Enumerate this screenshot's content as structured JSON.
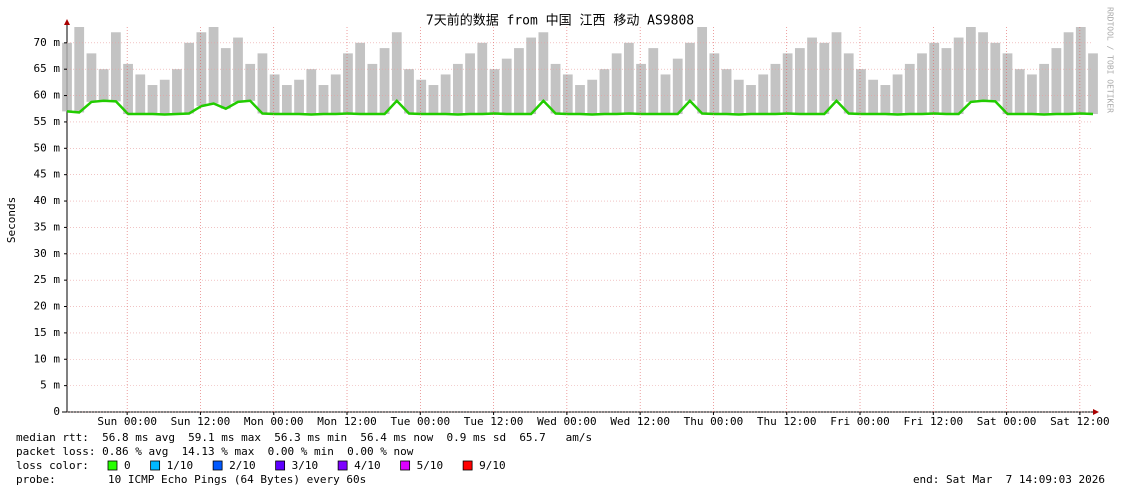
{
  "chart_data": {
    "type": "smokeline",
    "title": "7天前的数据 from 中国 江西 移动 AS9808",
    "y_label": "Seconds",
    "watermark": "RRDTOOL / TOBI OETIKER",
    "xlim": [
      0,
      168
    ],
    "xticks": [
      {
        "value": 9.85,
        "label": "Sun 00:00"
      },
      {
        "value": 21.85,
        "label": "Sun 12:00"
      },
      {
        "value": 33.85,
        "label": "Mon 00:00"
      },
      {
        "value": 45.85,
        "label": "Mon 12:00"
      },
      {
        "value": 57.85,
        "label": "Tue 00:00"
      },
      {
        "value": 69.85,
        "label": "Tue 12:00"
      },
      {
        "value": 81.85,
        "label": "Wed 00:00"
      },
      {
        "value": 93.85,
        "label": "Wed 12:00"
      },
      {
        "value": 105.85,
        "label": "Thu 00:00"
      },
      {
        "value": 117.85,
        "label": "Thu 12:00"
      },
      {
        "value": 129.85,
        "label": "Fri 00:00"
      },
      {
        "value": 141.85,
        "label": "Fri 12:00"
      },
      {
        "value": 153.85,
        "label": "Sat 00:00"
      },
      {
        "value": 165.85,
        "label": "Sat 12:00"
      }
    ],
    "ylim": [
      0,
      0.073
    ],
    "yticks": [
      0,
      {
        "value": 0.005,
        "label": "5 m"
      },
      {
        "value": 0.01,
        "label": "10 m"
      },
      {
        "value": 0.015,
        "label": "15 m"
      },
      {
        "value": 0.02,
        "label": "20 m"
      },
      {
        "value": 0.025,
        "label": "25 m"
      },
      {
        "value": 0.03,
        "label": "30 m"
      },
      {
        "value": 0.035,
        "label": "35 m"
      },
      {
        "value": 0.04,
        "label": "40 m"
      },
      {
        "value": 0.045,
        "label": "45 m"
      },
      {
        "value": 0.05,
        "label": "50 m"
      },
      {
        "value": 0.055,
        "label": "55 m"
      },
      {
        "value": 0.06,
        "label": "60 m"
      },
      {
        "value": 0.065,
        "label": "65 m"
      },
      {
        "value": 0.07,
        "label": "70 m"
      }
    ],
    "grid": true,
    "x": [
      0,
      2,
      4,
      6,
      8,
      10,
      12,
      14,
      16,
      18,
      20,
      22,
      24,
      26,
      28,
      30,
      32,
      34,
      36,
      38,
      40,
      42,
      44,
      46,
      48,
      50,
      52,
      54,
      56,
      58,
      60,
      62,
      64,
      66,
      68,
      70,
      72,
      74,
      76,
      78,
      80,
      82,
      84,
      86,
      88,
      90,
      92,
      94,
      96,
      98,
      100,
      102,
      104,
      106,
      108,
      110,
      112,
      114,
      116,
      118,
      120,
      122,
      124,
      126,
      128,
      130,
      132,
      134,
      136,
      138,
      140,
      142,
      144,
      146,
      148,
      150,
      152,
      154,
      156,
      158,
      160,
      162,
      164,
      166,
      168
    ],
    "series": [
      {
        "color": "#22cc00",
        "values": [
          0.057,
          0.0568,
          0.0588,
          0.059,
          0.0589,
          0.0565,
          0.0565,
          0.0565,
          0.0564,
          0.0565,
          0.0566,
          0.058,
          0.0585,
          0.0575,
          0.0588,
          0.059,
          0.0566,
          0.0565,
          0.0565,
          0.0565,
          0.0564,
          0.0565,
          0.0565,
          0.0566,
          0.0565,
          0.0565,
          0.0565,
          0.059,
          0.0566,
          0.0565,
          0.0565,
          0.0565,
          0.0564,
          0.0565,
          0.0565,
          0.0566,
          0.0565,
          0.0565,
          0.0565,
          0.059,
          0.0566,
          0.0565,
          0.0565,
          0.0564,
          0.0565,
          0.0565,
          0.0566,
          0.0565,
          0.0565,
          0.0565,
          0.0565,
          0.059,
          0.0566,
          0.0565,
          0.0565,
          0.0564,
          0.0565,
          0.0565,
          0.0565,
          0.0566,
          0.0565,
          0.0565,
          0.0565,
          0.059,
          0.0566,
          0.0565,
          0.0565,
          0.0565,
          0.0564,
          0.0565,
          0.0565,
          0.0566,
          0.0565,
          0.0565,
          0.0588,
          0.059,
          0.0589,
          0.0565,
          0.0565,
          0.0565,
          0.0564,
          0.0565,
          0.0565,
          0.0566,
          0.0565
        ]
      },
      {
        "color": "#b4b4b4",
        "values": [
          0.07,
          0.073,
          0.068,
          0.065,
          0.072,
          0.066,
          0.064,
          0.062,
          0.063,
          0.065,
          0.07,
          0.072,
          0.073,
          0.069,
          0.071,
          0.066,
          0.068,
          0.064,
          0.062,
          0.063,
          0.065,
          0.062,
          0.064,
          0.068,
          0.07,
          0.066,
          0.069,
          0.072,
          0.065,
          0.063,
          0.062,
          0.064,
          0.066,
          0.068,
          0.07,
          0.065,
          0.067,
          0.069,
          0.071,
          0.072,
          0.066,
          0.064,
          0.062,
          0.063,
          0.065,
          0.068,
          0.07,
          0.066,
          0.069,
          0.064,
          0.067,
          0.07,
          0.073,
          0.068,
          0.065,
          0.063,
          0.062,
          0.064,
          0.066,
          0.068,
          0.069,
          0.071,
          0.07,
          0.072,
          0.068,
          0.065,
          0.063,
          0.062,
          0.064,
          0.066,
          0.068,
          0.07,
          0.069,
          0.071,
          0.073,
          0.072,
          0.07,
          0.068,
          0.065,
          0.064,
          0.066,
          0.069,
          0.072,
          0.073,
          0.068
        ]
      }
    ],
    "stats": [
      "median rtt:  56.8 ms avg  59.1 ms max  56.3 ms min  56.4 ms now  0.9 ms sd  65.7   am/s",
      "packet loss: 0.86 % avg  14.13 % max  0.00 % min  0.00 % now"
    ],
    "loss_label": "loss color:",
    "loss_colors": [
      {
        "name": "0",
        "color": "#26ff00"
      },
      {
        "name": "1/10",
        "color": "#00b8ff"
      },
      {
        "name": "2/10",
        "color": "#0059ff"
      },
      {
        "name": "3/10",
        "color": "#5e00ff"
      },
      {
        "name": "4/10",
        "color": "#7e00ff"
      },
      {
        "name": "5/10",
        "color": "#dd00ff"
      },
      {
        "name": "9/10",
        "color": "#ff0000"
      }
    ],
    "probe_label": "probe:",
    "probe": "10 ICMP Echo Pings (64 Bytes) every 60s",
    "end": "end: Sat Mar  7 14:09:03 2026"
  }
}
